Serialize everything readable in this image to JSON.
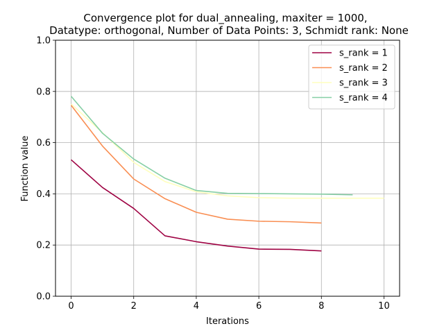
{
  "chart_data": {
    "type": "line",
    "title_line1": "Convergence plot for dual_annealing, maxiter = 1000,",
    "title_line2": "Datatype: orthogonal, Number of Data Points: 3, Schmidt rank: None",
    "xlabel": "Iterations",
    "ylabel": "Function value",
    "xlim": [
      -0.5,
      10.5
    ],
    "ylim": [
      0.0,
      1.0
    ],
    "xticks": [
      0,
      2,
      4,
      6,
      8,
      10
    ],
    "yticks": [
      0.0,
      0.2,
      0.4,
      0.6,
      0.8,
      1.0
    ],
    "xtick_labels": [
      "0",
      "2",
      "4",
      "6",
      "8",
      "10"
    ],
    "ytick_labels": [
      "0.0",
      "0.2",
      "0.4",
      "0.6",
      "0.8",
      "1.0"
    ],
    "grid": true,
    "legend_position": "top-right",
    "series": [
      {
        "name": "s_rank = 1",
        "color": "#9e0142",
        "x": [
          0,
          1,
          2,
          3,
          4,
          5,
          6,
          7,
          8
        ],
        "y": [
          0.533,
          0.425,
          0.343,
          0.236,
          0.213,
          0.196,
          0.184,
          0.183,
          0.177
        ]
      },
      {
        "name": "s_rank = 2",
        "color": "#f98e52",
        "x": [
          0,
          1,
          2,
          3,
          4,
          5,
          6,
          7,
          8
        ],
        "y": [
          0.746,
          0.587,
          0.458,
          0.381,
          0.328,
          0.301,
          0.293,
          0.291,
          0.286
        ]
      },
      {
        "name": "s_rank = 3",
        "color": "#ffffbe",
        "x": [
          0,
          1,
          2,
          3,
          4,
          5,
          6,
          7,
          8,
          9,
          10
        ],
        "y": [
          0.751,
          0.639,
          0.523,
          0.448,
          0.408,
          0.392,
          0.385,
          0.383,
          0.383,
          0.383,
          0.383
        ]
      },
      {
        "name": "s_rank = 4",
        "color": "#86cfa5",
        "x": [
          0,
          1,
          2,
          3,
          4,
          5,
          6,
          7,
          8,
          9
        ],
        "y": [
          0.781,
          0.637,
          0.536,
          0.461,
          0.413,
          0.402,
          0.401,
          0.4,
          0.399,
          0.396
        ]
      }
    ]
  }
}
